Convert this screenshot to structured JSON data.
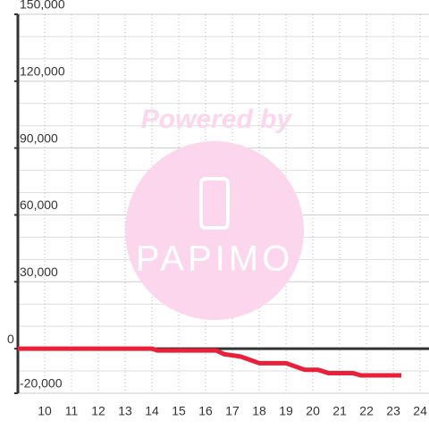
{
  "chart_data": {
    "type": "line",
    "watermark": {
      "text": "Powered by",
      "logo": "PAPIMO"
    },
    "xlim": [
      9,
      24.33
    ],
    "xticks": [
      10,
      11,
      12,
      13,
      14,
      15,
      16,
      17,
      18,
      19,
      20,
      21,
      22,
      23,
      24
    ],
    "ylim": [
      -20000,
      150000
    ],
    "yticks": [
      {
        "value": -20000,
        "label": "-20,000"
      },
      0,
      {
        "value": 30000,
        "label": "30,000"
      },
      {
        "value": 60000,
        "label": "60,000"
      },
      {
        "value": 90000,
        "label": "90,000"
      },
      {
        "value": 120000,
        "label": "120,000"
      },
      {
        "value": 150000,
        "label": "150,000"
      }
    ],
    "y_minor_ticks": [
      -10000,
      10000,
      20000,
      40000,
      50000,
      70000,
      80000,
      100000,
      110000,
      130000,
      140000
    ],
    "grid": true,
    "series": [
      {
        "color": "#e8203a",
        "x": [
          9,
          14,
          14.2,
          16.4,
          16.7,
          17.3,
          18,
          19,
          19.7,
          20.2,
          20.6,
          21.5,
          21.8,
          23.3
        ],
        "values": [
          0,
          0,
          -800,
          -800,
          -2500,
          -3500,
          -6500,
          -6500,
          -9500,
          -9500,
          -11000,
          -11000,
          -12000,
          -12000
        ]
      }
    ]
  }
}
